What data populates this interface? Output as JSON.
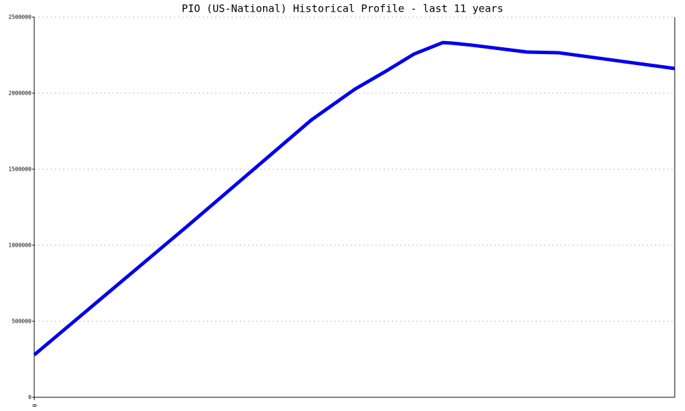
{
  "chart_data": {
    "type": "line",
    "title": "PIO (US-National) Historical Profile - last 11 years",
    "x": [
      0,
      2.59,
      4.76,
      5.51,
      6.06,
      6.52,
      7.02,
      7.18,
      7.53,
      8.47,
      9.0,
      11
    ],
    "series": [
      {
        "color": "#0000ee",
        "values": [
          279000,
          1113000,
          1824000,
          2027000,
          2149000,
          2257000,
          2333000,
          2329000,
          2315000,
          2270000,
          2266000,
          2162000
        ]
      }
    ],
    "xlim": [
      0,
      11
    ],
    "xticks": [
      0
    ],
    "ylim": [
      0,
      2500000
    ],
    "yticks": [
      0,
      500000,
      1000000,
      1500000,
      2000000,
      2500000
    ],
    "grid": true
  }
}
